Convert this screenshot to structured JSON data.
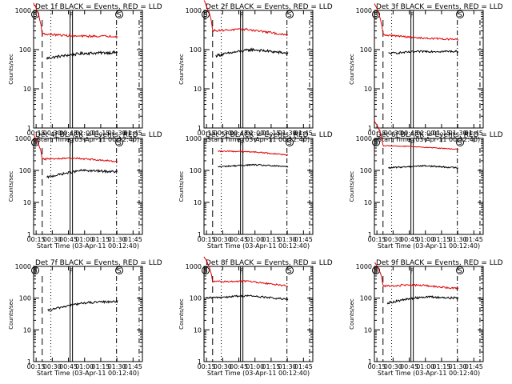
{
  "figure": {
    "y_axis_label": "Counts/sec",
    "x_axis_label": "Start Time (03-Apr-11 00:12:40)",
    "x_tick_labels": [
      "00:15",
      "00:30",
      "00:45",
      "01:00",
      "01:15",
      "01:30",
      "01:45"
    ],
    "y_tick_labels": [
      "1",
      "10",
      "100",
      "1000"
    ],
    "colors": {
      "events": "#000000",
      "lld": "#e00000",
      "axes": "#000000",
      "background": "#ffffff"
    },
    "marker_labels": {
      "s": "S",
      "f": "F"
    }
  },
  "chart_data": [
    {
      "type": "line",
      "title": "Det 1f BLACK = Events, RED = LLD",
      "xlabel": "Start Time (03-Apr-11 00:12:40)",
      "ylabel": "Counts/sec",
      "x_unit": "minutes after 00:12:40",
      "xlim": [
        0,
        101
      ],
      "ylim": [
        1,
        1000
      ],
      "yscale": "log",
      "series": [
        {
          "name": "Events",
          "color": "#000000",
          "start": 12,
          "end": 78,
          "level_start": 60,
          "level_mid": 80,
          "level_end": 85,
          "noise": 0.08
        },
        {
          "name": "LLD",
          "color": "#e00000",
          "start": 0,
          "end": 78,
          "level_start": 260,
          "level_mid": 220,
          "level_end": 220,
          "noise": 0.06
        }
      ],
      "markers": [
        {
          "type": "dashed",
          "x": 8
        },
        {
          "type": "dotted",
          "x": 16
        },
        {
          "type": "F",
          "x": 35
        },
        {
          "type": "dashdot",
          "x": 77
        },
        {
          "type": "S",
          "x": 78
        },
        {
          "type": "S",
          "x": 0
        },
        {
          "type": "dashdot",
          "x": 98
        }
      ]
    },
    {
      "type": "line",
      "title": "Det 2f BLACK = Events, RED = LLD",
      "xlabel": "Start Time (03-Apr-11 00:12:40)",
      "ylabel": "Counts/sec",
      "x_unit": "minutes after 00:12:40",
      "xlim": [
        0,
        101
      ],
      "ylim": [
        1,
        1000
      ],
      "yscale": "log",
      "series": [
        {
          "name": "Events",
          "color": "#000000",
          "start": 11,
          "end": 78,
          "level_start": 70,
          "level_mid": 100,
          "level_end": 80,
          "noise": 0.08
        },
        {
          "name": "LLD",
          "color": "#e00000",
          "start": 0,
          "end": 78,
          "level_start": 300,
          "level_mid": 330,
          "level_end": 230,
          "noise": 0.06
        }
      ],
      "markers": [
        {
          "type": "dashed",
          "x": 8
        },
        {
          "type": "dotted",
          "x": 16
        },
        {
          "type": "F",
          "x": 35
        },
        {
          "type": "dashdot",
          "x": 77
        },
        {
          "type": "S",
          "x": 78
        },
        {
          "type": "S",
          "x": 0
        },
        {
          "type": "dashdot",
          "x": 98
        }
      ]
    },
    {
      "type": "line",
      "title": "Det 3f BLACK = Events, RED = LLD",
      "xlabel": "Start Time (03-Apr-11 00:12:40)",
      "ylabel": "Counts/sec",
      "x_unit": "minutes after 00:12:40",
      "xlim": [
        0,
        101
      ],
      "ylim": [
        1,
        1000
      ],
      "yscale": "log",
      "series": [
        {
          "name": "Events",
          "color": "#000000",
          "start": 13,
          "end": 78,
          "level_start": 80,
          "level_mid": 90,
          "level_end": 90,
          "noise": 0.06
        },
        {
          "name": "LLD",
          "color": "#e00000",
          "start": 0,
          "end": 78,
          "level_start": 250,
          "level_mid": 200,
          "level_end": 180,
          "noise": 0.05
        }
      ],
      "markers": [
        {
          "type": "dashed",
          "x": 8
        },
        {
          "type": "dotted",
          "x": 16
        },
        {
          "type": "F",
          "x": 35
        },
        {
          "type": "dashdot",
          "x": 77
        },
        {
          "type": "S",
          "x": 78
        },
        {
          "type": "S",
          "x": 0
        },
        {
          "type": "dashdot",
          "x": 98
        }
      ]
    },
    {
      "type": "line",
      "title": "Det 4f BLACK = Events, RED = LLD",
      "xlabel": "Start Time (03-Apr-11 00:12:40)",
      "ylabel": "Counts/sec",
      "x_unit": "minutes after 00:12:40",
      "xlim": [
        0,
        101
      ],
      "ylim": [
        1,
        1000
      ],
      "yscale": "log",
      "series": [
        {
          "name": "Events",
          "color": "#000000",
          "start": 12,
          "end": 78,
          "level_start": 60,
          "level_mid": 100,
          "level_end": 90,
          "noise": 0.08
        },
        {
          "name": "LLD",
          "color": "#e00000",
          "start": 0,
          "end": 78,
          "level_start": 220,
          "level_mid": 240,
          "level_end": 190,
          "noise": 0.06
        }
      ],
      "markers": [
        {
          "type": "dashed",
          "x": 8
        },
        {
          "type": "dotted",
          "x": 16
        },
        {
          "type": "F",
          "x": 35
        },
        {
          "type": "dashdot",
          "x": 77
        },
        {
          "type": "S",
          "x": 78
        },
        {
          "type": "S",
          "x": 0
        },
        {
          "type": "dashdot",
          "x": 98
        }
      ]
    },
    {
      "type": "line",
      "title": "Det 5f BLACK = Events, RED = LLD",
      "xlabel": "Start Time (03-Apr-11 00:12:40)",
      "ylabel": "Counts/sec",
      "x_unit": "minutes after 00:12:40",
      "xlim": [
        0,
        101
      ],
      "ylim": [
        1,
        1000
      ],
      "yscale": "log",
      "series": [
        {
          "name": "Events",
          "color": "#000000",
          "start": 13,
          "end": 78,
          "level_start": 130,
          "level_mid": 150,
          "level_end": 130,
          "noise": 0.05
        },
        {
          "name": "LLD",
          "color": "#e00000",
          "start": 13,
          "end": 78,
          "level_start": 400,
          "level_mid": 380,
          "level_end": 300,
          "noise": 0.04
        }
      ],
      "markers": [
        {
          "type": "dashed",
          "x": 8
        },
        {
          "type": "dotted",
          "x": 16
        },
        {
          "type": "F",
          "x": 35
        },
        {
          "type": "dashdot",
          "x": 77
        },
        {
          "type": "S",
          "x": 78
        },
        {
          "type": "dashdot",
          "x": 98
        }
      ]
    },
    {
      "type": "line",
      "title": "Det 6f BLACK = Events, RED = LLD",
      "xlabel": "Start Time (03-Apr-11 00:12:40)",
      "ylabel": "Counts/sec",
      "x_unit": "minutes after 00:12:40",
      "xlim": [
        0,
        101
      ],
      "ylim": [
        1,
        1000
      ],
      "yscale": "log",
      "series": [
        {
          "name": "Events",
          "color": "#000000",
          "start": 13,
          "end": 78,
          "level_start": 120,
          "level_mid": 140,
          "level_end": 120,
          "noise": 0.05
        },
        {
          "name": "LLD",
          "color": "#e00000",
          "start": 0,
          "end": 78,
          "level_start": 600,
          "level_mid": 550,
          "level_end": 450,
          "noise": 0.03
        }
      ],
      "markers": [
        {
          "type": "dashed",
          "x": 8
        },
        {
          "type": "dotted",
          "x": 16
        },
        {
          "type": "F",
          "x": 35
        },
        {
          "type": "dashdot",
          "x": 77
        },
        {
          "type": "S",
          "x": 78
        },
        {
          "type": "S",
          "x": 0
        },
        {
          "type": "dashdot",
          "x": 98
        }
      ]
    },
    {
      "type": "line",
      "title": "Det 7f BLACK = Events, RED = LLD",
      "xlabel": "Start Time (03-Apr-11 00:12:40)",
      "ylabel": "Counts/sec",
      "x_unit": "minutes after 00:12:40",
      "xlim": [
        0,
        101
      ],
      "ylim": [
        1,
        1000
      ],
      "yscale": "log",
      "series": [
        {
          "name": "Events",
          "color": "#000000",
          "start": 13,
          "end": 78,
          "level_start": 40,
          "level_mid": 70,
          "level_end": 80,
          "noise": 0.08
        }
      ],
      "markers": [
        {
          "type": "dashed",
          "x": 8
        },
        {
          "type": "dotted",
          "x": 16
        },
        {
          "type": "F",
          "x": 35
        },
        {
          "type": "dashdot",
          "x": 77
        },
        {
          "type": "S",
          "x": 78
        },
        {
          "type": "S",
          "x": 0
        },
        {
          "type": "dashdot",
          "x": 98
        }
      ]
    },
    {
      "type": "line",
      "title": "Det 8f BLACK = Events, RED = LLD",
      "xlabel": "Start Time (03-Apr-11 00:12:40)",
      "ylabel": "Counts/sec",
      "x_unit": "minutes after 00:12:40",
      "xlim": [
        0,
        101
      ],
      "ylim": [
        1,
        1000
      ],
      "yscale": "log",
      "series": [
        {
          "name": "Events",
          "color": "#000000",
          "start": 2,
          "end": 78,
          "level_start": 100,
          "level_mid": 120,
          "level_end": 90,
          "noise": 0.07
        },
        {
          "name": "LLD",
          "color": "#e00000",
          "start": 0,
          "end": 78,
          "level_start": 330,
          "level_mid": 340,
          "level_end": 240,
          "noise": 0.06
        }
      ],
      "markers": [
        {
          "type": "dashed",
          "x": 8
        },
        {
          "type": "dotted",
          "x": 16
        },
        {
          "type": "F",
          "x": 35
        },
        {
          "type": "dashdot",
          "x": 77
        },
        {
          "type": "S",
          "x": 78
        },
        {
          "type": "S",
          "x": 0
        },
        {
          "type": "dashdot",
          "x": 98
        }
      ]
    },
    {
      "type": "line",
      "title": "Det 9f BLACK = Events, RED = LLD",
      "xlabel": "Start Time (03-Apr-11 00:12:40)",
      "ylabel": "Counts/sec",
      "x_unit": "minutes after 00:12:40",
      "xlim": [
        0,
        101
      ],
      "ylim": [
        1,
        1000
      ],
      "yscale": "log",
      "series": [
        {
          "name": "Events",
          "color": "#000000",
          "start": 12,
          "end": 78,
          "level_start": 70,
          "level_mid": 110,
          "level_end": 100,
          "noise": 0.08
        },
        {
          "name": "LLD",
          "color": "#e00000",
          "start": 0,
          "end": 78,
          "level_start": 240,
          "level_mid": 260,
          "level_end": 200,
          "noise": 0.07
        }
      ],
      "markers": [
        {
          "type": "dashed",
          "x": 8
        },
        {
          "type": "dotted",
          "x": 16
        },
        {
          "type": "F",
          "x": 35
        },
        {
          "type": "dashdot",
          "x": 77
        },
        {
          "type": "S",
          "x": 78
        },
        {
          "type": "S",
          "x": 0
        },
        {
          "type": "dashdot",
          "x": 98
        }
      ]
    }
  ]
}
